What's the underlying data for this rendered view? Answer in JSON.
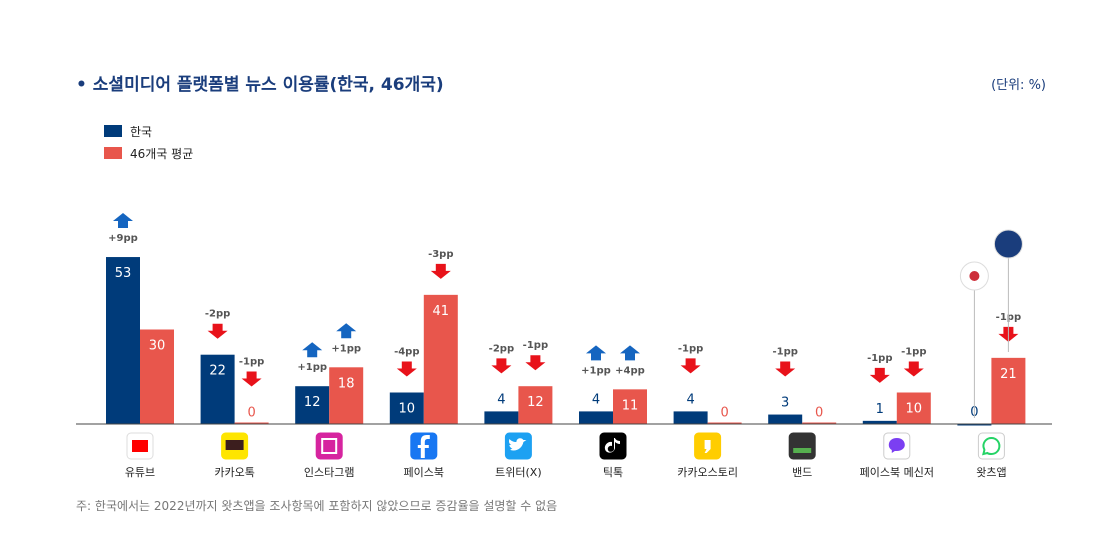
{
  "title": "• 소셜미디어 플랫폼별 뉴스 이용률(한국, 46개국)",
  "unit": "(단위: %)",
  "note": "주: 한국에서는 2022년까지 왓츠앱을 조사항목에 포함하지 않았으므로 증감율을 설명할 수 없음",
  "colors": {
    "korea": "#003b7a",
    "avg": "#e8564c",
    "up": "#1565c0",
    "down": "#e8121a"
  },
  "chart_data": {
    "type": "bar",
    "categories": [
      "유튜브",
      "카카오톡",
      "인스타그램",
      "페이스북",
      "트위터(X)",
      "틱톡",
      "카카오스토리",
      "밴드",
      "페이스북 메신저",
      "왓츠앱"
    ],
    "icons": [
      "youtube-icon",
      "kakaotalk-icon",
      "instagram-icon",
      "facebook-icon",
      "twitter-icon",
      "tiktok-icon",
      "kakaostory-icon",
      "band-icon",
      "facebook-messenger-icon",
      "whatsapp-icon"
    ],
    "series": [
      {
        "name": "한국",
        "values": [
          53,
          22,
          12,
          10,
          4,
          4,
          4,
          3,
          1,
          0
        ],
        "changes": [
          "+9pp",
          "-2pp",
          "+1pp",
          "-4pp",
          "-2pp",
          "+1pp",
          "-1pp",
          "-1pp",
          "-1pp",
          ""
        ]
      },
      {
        "name": "46개국 평균",
        "values": [
          30,
          0,
          18,
          41,
          12,
          11,
          0,
          0,
          10,
          21
        ],
        "changes": [
          "",
          "-1pp",
          "+1pp",
          "-3pp",
          "-1pp",
          "+4pp",
          "",
          "",
          "-1pp",
          "-1pp"
        ]
      }
    ],
    "ylim": [
      0,
      60
    ],
    "legend_position": "top-left",
    "grid": false
  }
}
